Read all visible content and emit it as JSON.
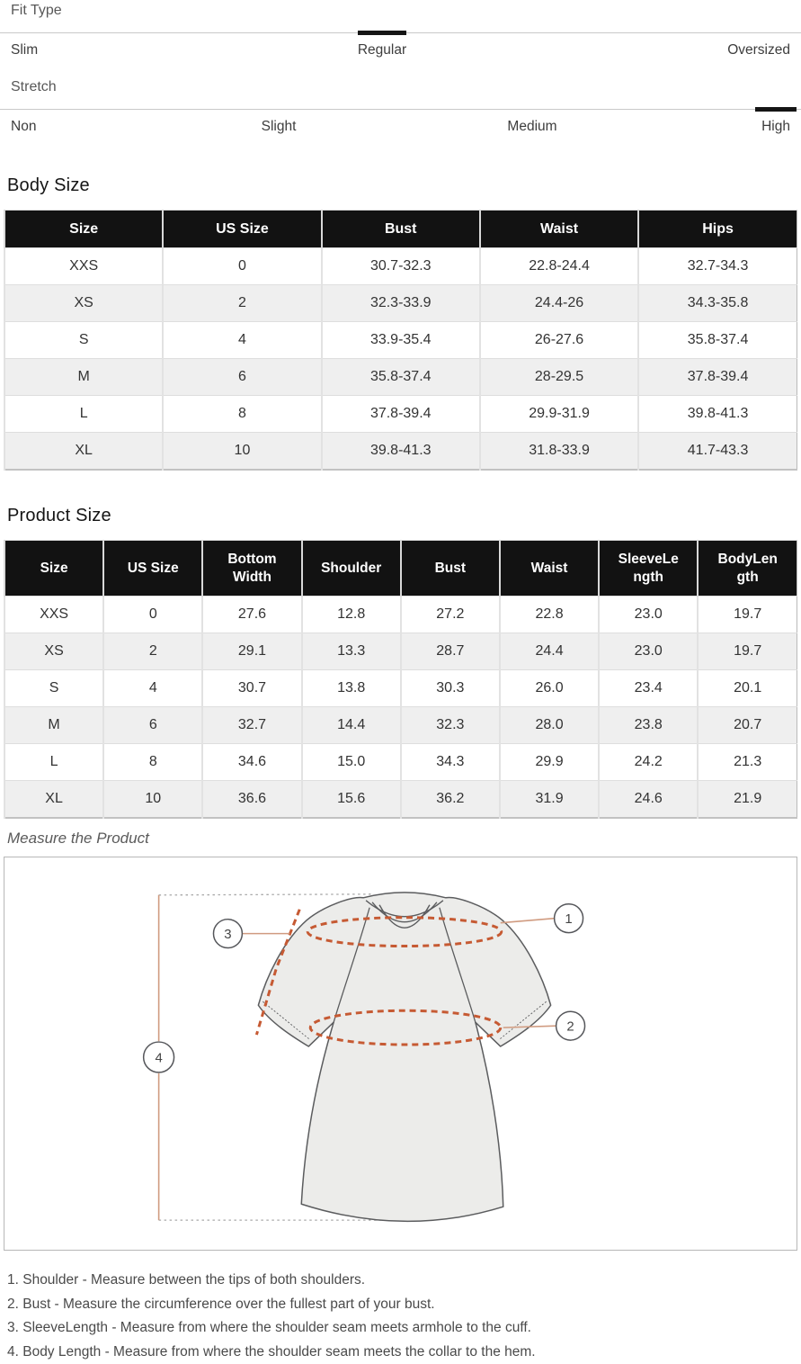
{
  "fit_scales": [
    {
      "label": "Fit Type",
      "options": [
        "Slim",
        "Regular",
        "Oversized"
      ],
      "selected": "Regular"
    },
    {
      "label": "Stretch",
      "options": [
        "Non",
        "Slight",
        "Medium",
        "High"
      ],
      "selected": "High"
    }
  ],
  "body_size": {
    "title": "Body Size",
    "columns": [
      "Size",
      "US Size",
      "Bust",
      "Waist",
      "Hips"
    ],
    "rows": [
      [
        "XXS",
        "0",
        "30.7-32.3",
        "22.8-24.4",
        "32.7-34.3"
      ],
      [
        "XS",
        "2",
        "32.3-33.9",
        "24.4-26",
        "34.3-35.8"
      ],
      [
        "S",
        "4",
        "33.9-35.4",
        "26-27.6",
        "35.8-37.4"
      ],
      [
        "M",
        "6",
        "35.8-37.4",
        "28-29.5",
        "37.8-39.4"
      ],
      [
        "L",
        "8",
        "37.8-39.4",
        "29.9-31.9",
        "39.8-41.3"
      ],
      [
        "XL",
        "10",
        "39.8-41.3",
        "31.8-33.9",
        "41.7-43.3"
      ]
    ]
  },
  "product_size": {
    "title": "Product Size",
    "columns": [
      "Size",
      "US Size",
      "Bottom Width",
      "Shoulder",
      "Bust",
      "Waist",
      "SleeveLength",
      "BodyLength"
    ],
    "rows": [
      [
        "XXS",
        "0",
        "27.6",
        "12.8",
        "27.2",
        "22.8",
        "23.0",
        "19.7"
      ],
      [
        "XS",
        "2",
        "29.1",
        "13.3",
        "28.7",
        "24.4",
        "23.0",
        "19.7"
      ],
      [
        "S",
        "4",
        "30.7",
        "13.8",
        "30.3",
        "26.0",
        "23.4",
        "20.1"
      ],
      [
        "M",
        "6",
        "32.7",
        "14.4",
        "32.3",
        "28.0",
        "23.8",
        "20.7"
      ],
      [
        "L",
        "8",
        "34.6",
        "15.0",
        "34.3",
        "29.9",
        "24.2",
        "21.3"
      ],
      [
        "XL",
        "10",
        "36.6",
        "15.6",
        "36.2",
        "31.9",
        "24.6",
        "21.9"
      ]
    ]
  },
  "measure": {
    "title": "Measure the Product",
    "callouts": [
      "1",
      "2",
      "3",
      "4"
    ]
  },
  "notes": [
    "1. Shoulder - Measure between the tips of both shoulders.",
    "2. Bust - Measure the circumference over the fullest part of your bust.",
    "3. SleeveLength - Measure from where the shoulder seam meets armhole to the cuff.",
    "4. Body Length - Measure from where the shoulder seam meets the collar to the hem."
  ],
  "colors": {
    "measure_dash": "#c65a33",
    "leader_line": "#d09b80",
    "dotted_guide": "#a8a8a8",
    "marker": "#151515",
    "table_header_bg": "#121212",
    "row_stripe": "#efefef",
    "shirt_fill": "#ececea",
    "shirt_outline": "#5b5c5e"
  }
}
